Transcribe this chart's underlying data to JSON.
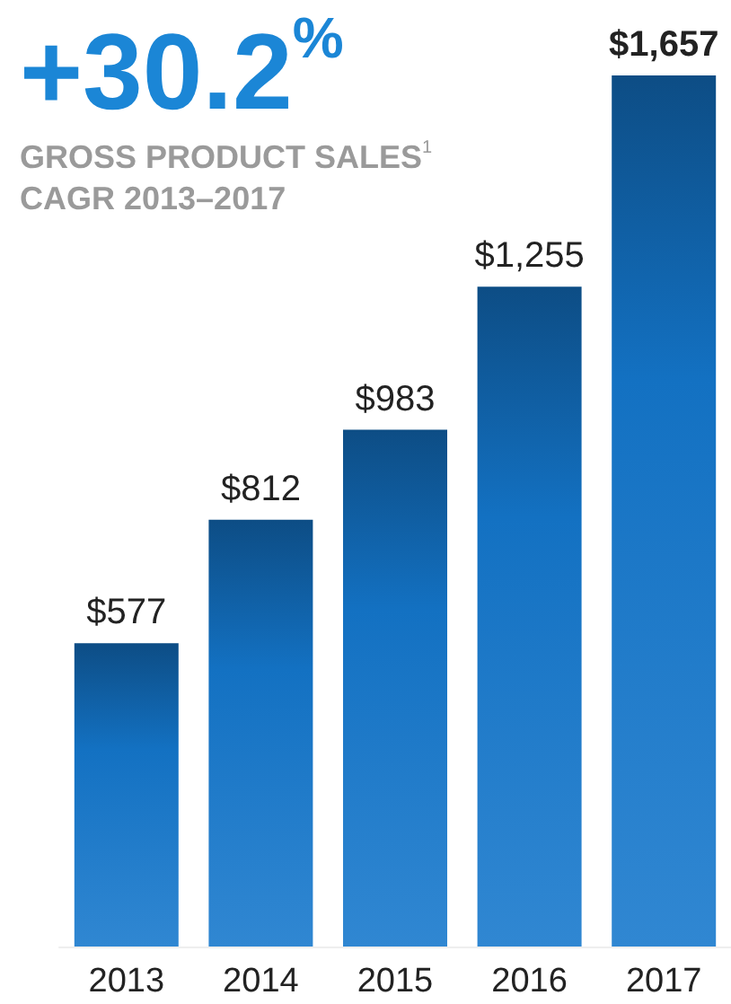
{
  "chart_data": {
    "type": "bar",
    "title": "+30.2$^{%}$",
    "subtitle": "GROSS PRODUCT SALES$^{1}$\nCAGR 2013–2017",
    "categories": [
      "2013",
      "2014",
      "2015",
      "2016",
      "2017"
    ],
    "values": [
      577,
      812,
      983,
      1255,
      1657
    ],
    "value_labels": [
      "$577",
      "$812",
      "$983",
      "$1,255",
      "$1,657"
    ],
    "color": "#1477cc"
  }
}
